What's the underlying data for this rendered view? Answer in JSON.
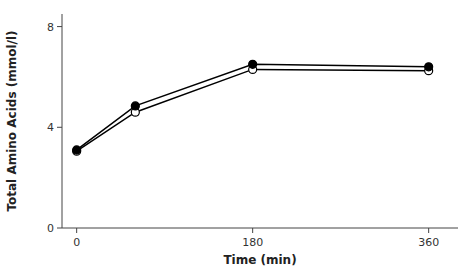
{
  "chart_data": {
    "type": "line",
    "xlabel": "Time (min)",
    "ylabel": "Total Amino Acids (mmol/l)",
    "x": [
      0,
      60,
      180,
      360
    ],
    "xlim": [
      -15,
      390
    ],
    "ylim": [
      0,
      8.5
    ],
    "xticks": [
      0,
      180,
      360
    ],
    "yticks": [
      0,
      4,
      8
    ],
    "series": [
      {
        "color": "#000000",
        "marker": "filled-circle",
        "values": [
          3.1,
          4.85,
          6.5,
          6.4
        ],
        "errors": [
          0.04,
          0.1,
          0.1,
          0.0
        ]
      },
      {
        "color": "#000000",
        "marker": "open-circle",
        "values": [
          3.05,
          4.6,
          6.3,
          6.25
        ],
        "errors": [
          0.04,
          0.12,
          0.1,
          0.1
        ]
      }
    ]
  }
}
